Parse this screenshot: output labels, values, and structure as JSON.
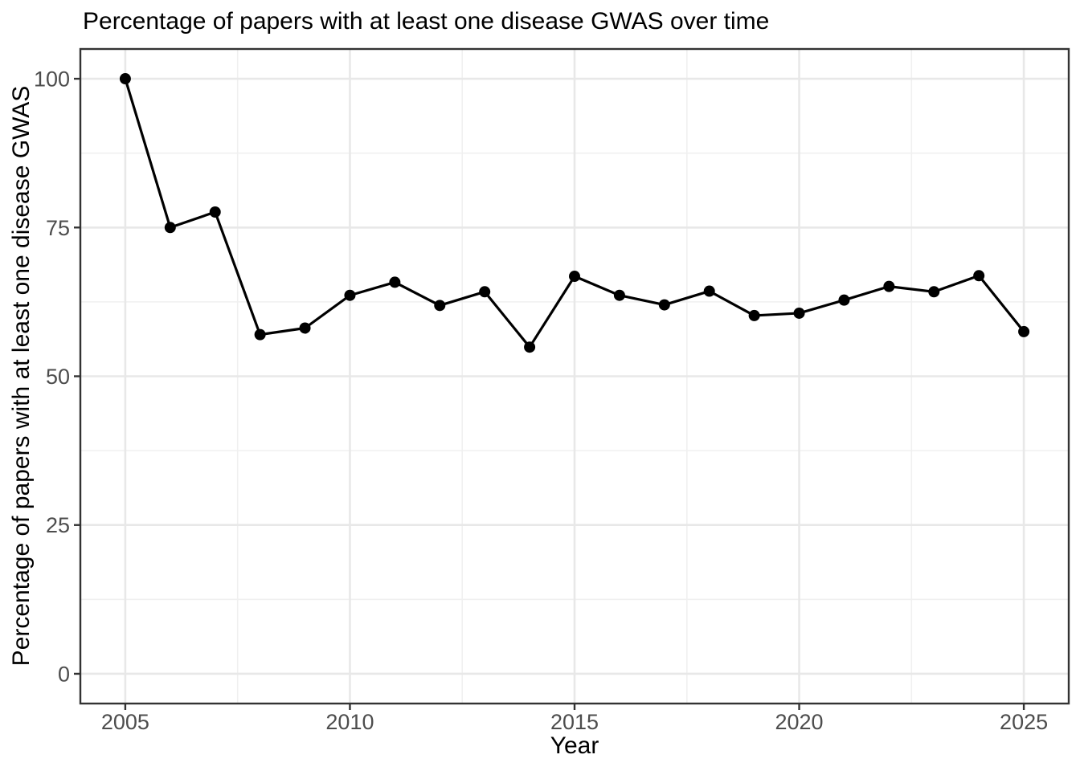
{
  "chart_data": {
    "type": "line",
    "title": "Percentage of papers with at least one disease GWAS over time",
    "xlabel": "Year",
    "ylabel": "Percentage of papers with at least one disease GWAS",
    "x": [
      2005,
      2006,
      2007,
      2008,
      2009,
      2010,
      2011,
      2012,
      2013,
      2014,
      2015,
      2016,
      2017,
      2018,
      2019,
      2020,
      2021,
      2022,
      2023,
      2024,
      2025
    ],
    "values": [
      100,
      75,
      77.6,
      57,
      58.1,
      63.6,
      65.8,
      61.9,
      64.2,
      54.9,
      66.8,
      63.6,
      62,
      64.3,
      60.2,
      60.6,
      62.8,
      65.1,
      64.2,
      66.9,
      57.5
    ],
    "x_ticks": [
      2005,
      2010,
      2015,
      2020,
      2025
    ],
    "x_tick_labels": [
      "2005",
      "2010",
      "2015",
      "2020",
      "2025"
    ],
    "y_ticks": [
      0,
      25,
      50,
      75,
      100
    ],
    "y_tick_labels": [
      "0",
      "25",
      "50",
      "75",
      "100"
    ],
    "x_range": [
      2004,
      2026
    ],
    "y_range": [
      -5,
      105
    ],
    "grid": {
      "major": true,
      "minor": true
    },
    "legend": "none",
    "marker": "filled-circle",
    "colors": {
      "line": "#000000",
      "point": "#000000",
      "grid_major": "#E8E8E8",
      "grid_minor": "#F0F0F0",
      "panel_border": "#333333",
      "tick_mark": "#333333",
      "tick_label": "#4D4D4D",
      "text": "#000000",
      "background": "#FFFFFF"
    }
  }
}
